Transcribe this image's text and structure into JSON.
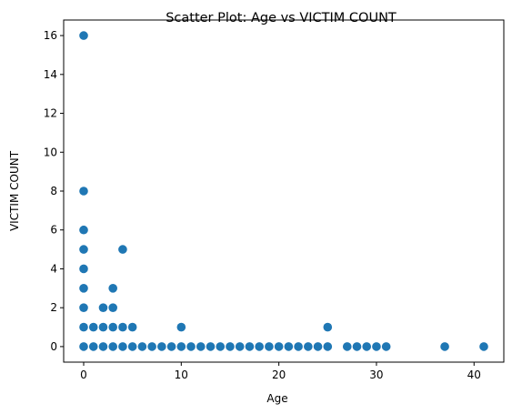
{
  "chart_data": {
    "type": "scatter",
    "title": "Scatter Plot: Age vs VICTIM COUNT",
    "xlabel": "Age",
    "ylabel": "VICTIM COUNT",
    "xlim": [
      -2.05,
      43.05
    ],
    "ylim": [
      -0.8,
      16.8
    ],
    "xticks": [
      0,
      10,
      20,
      30,
      40
    ],
    "yticks": [
      0,
      2,
      4,
      6,
      8,
      10,
      12,
      14,
      16
    ],
    "grid": false,
    "marker_color": "#1f77b4",
    "points": [
      [
        0,
        16
      ],
      [
        0,
        8
      ],
      [
        0,
        6
      ],
      [
        0,
        5
      ],
      [
        4,
        5
      ],
      [
        0,
        4
      ],
      [
        0,
        3
      ],
      [
        3,
        3
      ],
      [
        0,
        2
      ],
      [
        2,
        2
      ],
      [
        3,
        2
      ],
      [
        0,
        1
      ],
      [
        1,
        1
      ],
      [
        2,
        1
      ],
      [
        3,
        1
      ],
      [
        4,
        1
      ],
      [
        5,
        1
      ],
      [
        10,
        1
      ],
      [
        25,
        1
      ],
      [
        0,
        0
      ],
      [
        1,
        0
      ],
      [
        2,
        0
      ],
      [
        3,
        0
      ],
      [
        4,
        0
      ],
      [
        5,
        0
      ],
      [
        6,
        0
      ],
      [
        7,
        0
      ],
      [
        8,
        0
      ],
      [
        9,
        0
      ],
      [
        10,
        0
      ],
      [
        11,
        0
      ],
      [
        12,
        0
      ],
      [
        13,
        0
      ],
      [
        14,
        0
      ],
      [
        15,
        0
      ],
      [
        16,
        0
      ],
      [
        17,
        0
      ],
      [
        18,
        0
      ],
      [
        19,
        0
      ],
      [
        20,
        0
      ],
      [
        21,
        0
      ],
      [
        22,
        0
      ],
      [
        23,
        0
      ],
      [
        24,
        0
      ],
      [
        25,
        0
      ],
      [
        27,
        0
      ],
      [
        28,
        0
      ],
      [
        29,
        0
      ],
      [
        30,
        0
      ],
      [
        31,
        0
      ],
      [
        37,
        0
      ],
      [
        41,
        0
      ]
    ]
  }
}
